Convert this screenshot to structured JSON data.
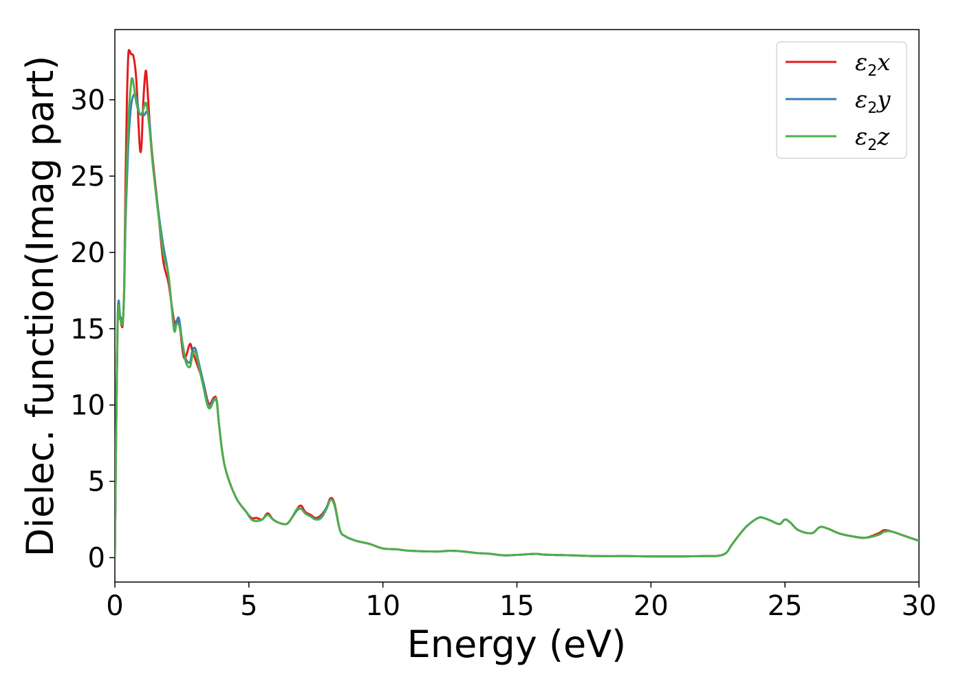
{
  "chart_data": {
    "type": "line",
    "title": "",
    "xlabel": "Energy (eV)",
    "ylabel": "Dielec. function(Imag part)",
    "xlim": [
      0,
      30
    ],
    "ylim": [
      -1.6,
      34.6
    ],
    "xticks": [
      0,
      5,
      10,
      15,
      20,
      25,
      30
    ],
    "yticks": [
      0,
      5,
      10,
      15,
      20,
      25,
      30
    ],
    "grid": false,
    "legend_position": "top-right",
    "series": [
      {
        "name": "ε2x",
        "legend_base": "ε",
        "legend_sub": "2",
        "legend_suffix": "x",
        "color": "#e41a1c",
        "points": [
          [
            0,
            0
          ],
          [
            0.1,
            15
          ],
          [
            0.2,
            15.6
          ],
          [
            0.25,
            15.2
          ],
          [
            0.3,
            15.4
          ],
          [
            0.35,
            18
          ],
          [
            0.4,
            25
          ],
          [
            0.45,
            30
          ],
          [
            0.5,
            32.9
          ],
          [
            0.55,
            33.2
          ],
          [
            0.6,
            33.0
          ],
          [
            0.7,
            32.8
          ],
          [
            0.8,
            31.3
          ],
          [
            0.9,
            27.8
          ],
          [
            0.95,
            26.6
          ],
          [
            1.0,
            27.2
          ],
          [
            1.05,
            29.5
          ],
          [
            1.1,
            31.0
          ],
          [
            1.15,
            31.9
          ],
          [
            1.2,
            31.2
          ],
          [
            1.3,
            28.4
          ],
          [
            1.4,
            26.3
          ],
          [
            1.6,
            23.0
          ],
          [
            1.8,
            19.5
          ],
          [
            2.0,
            18.0
          ],
          [
            2.2,
            15.6
          ],
          [
            2.3,
            15.3
          ],
          [
            2.4,
            15.4
          ],
          [
            2.55,
            13.3
          ],
          [
            2.65,
            13.2
          ],
          [
            2.8,
            14.0
          ],
          [
            2.9,
            13.5
          ],
          [
            3.1,
            12.5
          ],
          [
            3.3,
            11.5
          ],
          [
            3.5,
            10.1
          ],
          [
            3.7,
            10.5
          ],
          [
            3.8,
            10.3
          ],
          [
            3.9,
            8.5
          ],
          [
            4.1,
            6.0
          ],
          [
            4.5,
            4.0
          ],
          [
            4.9,
            3.0
          ],
          [
            5.1,
            2.6
          ],
          [
            5.3,
            2.6
          ],
          [
            5.5,
            2.5
          ],
          [
            5.7,
            2.9
          ],
          [
            5.9,
            2.5
          ],
          [
            6.1,
            2.3
          ],
          [
            6.4,
            2.2
          ],
          [
            6.6,
            2.6
          ],
          [
            6.8,
            3.2
          ],
          [
            6.95,
            3.4
          ],
          [
            7.1,
            3.0
          ],
          [
            7.3,
            2.8
          ],
          [
            7.5,
            2.6
          ],
          [
            7.7,
            2.8
          ],
          [
            7.9,
            3.3
          ],
          [
            8.05,
            3.9
          ],
          [
            8.2,
            3.5
          ],
          [
            8.4,
            1.8
          ],
          [
            8.6,
            1.4
          ],
          [
            9.0,
            1.1
          ],
          [
            9.5,
            0.9
          ],
          [
            10.0,
            0.6
          ],
          [
            10.5,
            0.55
          ],
          [
            11,
            0.45
          ],
          [
            12,
            0.4
          ],
          [
            12.5,
            0.45
          ],
          [
            13,
            0.4
          ],
          [
            13.5,
            0.3
          ],
          [
            14,
            0.25
          ],
          [
            14.5,
            0.15
          ],
          [
            15,
            0.18
          ],
          [
            15.7,
            0.25
          ],
          [
            16,
            0.2
          ],
          [
            17,
            0.15
          ],
          [
            18,
            0.1
          ],
          [
            19,
            0.1
          ],
          [
            20,
            0.08
          ],
          [
            21,
            0.08
          ],
          [
            22,
            0.1
          ],
          [
            22.5,
            0.12
          ],
          [
            22.8,
            0.3
          ],
          [
            23.0,
            0.8
          ],
          [
            23.3,
            1.5
          ],
          [
            23.6,
            2.1
          ],
          [
            24.0,
            2.6
          ],
          [
            24.2,
            2.6
          ],
          [
            24.5,
            2.4
          ],
          [
            24.8,
            2.2
          ],
          [
            25.0,
            2.5
          ],
          [
            25.2,
            2.3
          ],
          [
            25.5,
            1.8
          ],
          [
            26.0,
            1.6
          ],
          [
            26.3,
            2.0
          ],
          [
            26.6,
            1.9
          ],
          [
            27,
            1.6
          ],
          [
            27.5,
            1.4
          ],
          [
            28,
            1.3
          ],
          [
            28.5,
            1.6
          ],
          [
            28.7,
            1.8
          ],
          [
            29,
            1.7
          ],
          [
            29.5,
            1.4
          ],
          [
            30,
            1.1
          ]
        ]
      },
      {
        "name": "ε2y",
        "legend_base": "ε",
        "legend_sub": "2",
        "legend_suffix": "y",
        "color": "#377eb8",
        "points": [
          [
            0,
            0
          ],
          [
            0.1,
            15.5
          ],
          [
            0.2,
            15.8
          ],
          [
            0.25,
            15.5
          ],
          [
            0.3,
            15.6
          ],
          [
            0.35,
            17.5
          ],
          [
            0.4,
            22
          ],
          [
            0.5,
            27
          ],
          [
            0.6,
            29.5
          ],
          [
            0.7,
            30.3
          ],
          [
            0.8,
            30.2
          ],
          [
            0.9,
            29.2
          ],
          [
            1.0,
            29.0
          ],
          [
            1.1,
            29.0
          ],
          [
            1.2,
            29.2
          ],
          [
            1.3,
            28.4
          ],
          [
            1.4,
            26.0
          ],
          [
            1.6,
            23.0
          ],
          [
            1.8,
            20.5
          ],
          [
            2.0,
            18.5
          ],
          [
            2.2,
            15.2
          ],
          [
            2.3,
            15.5
          ],
          [
            2.4,
            15.6
          ],
          [
            2.55,
            13.6
          ],
          [
            2.65,
            13.0
          ],
          [
            2.8,
            12.8
          ],
          [
            2.9,
            13.6
          ],
          [
            3.0,
            13.7
          ],
          [
            3.1,
            13.0
          ],
          [
            3.3,
            11.5
          ],
          [
            3.5,
            9.9
          ],
          [
            3.7,
            10.4
          ],
          [
            3.8,
            10.2
          ],
          [
            3.9,
            8.5
          ],
          [
            4.1,
            6.0
          ],
          [
            4.5,
            4.0
          ],
          [
            4.9,
            3.0
          ],
          [
            5.1,
            2.5
          ],
          [
            5.3,
            2.4
          ],
          [
            5.5,
            2.5
          ],
          [
            5.7,
            2.8
          ],
          [
            5.9,
            2.5
          ],
          [
            6.1,
            2.3
          ],
          [
            6.4,
            2.2
          ],
          [
            6.6,
            2.6
          ],
          [
            6.8,
            3.1
          ],
          [
            6.95,
            3.2
          ],
          [
            7.1,
            2.9
          ],
          [
            7.3,
            2.7
          ],
          [
            7.5,
            2.5
          ],
          [
            7.7,
            2.7
          ],
          [
            7.9,
            3.3
          ],
          [
            8.05,
            3.8
          ],
          [
            8.2,
            3.4
          ],
          [
            8.4,
            1.8
          ],
          [
            8.6,
            1.4
          ],
          [
            9.0,
            1.1
          ],
          [
            9.5,
            0.9
          ],
          [
            10.0,
            0.6
          ],
          [
            10.5,
            0.55
          ],
          [
            11,
            0.45
          ],
          [
            12,
            0.4
          ],
          [
            12.5,
            0.45
          ],
          [
            13,
            0.4
          ],
          [
            13.5,
            0.3
          ],
          [
            14,
            0.25
          ],
          [
            14.5,
            0.15
          ],
          [
            15,
            0.18
          ],
          [
            15.7,
            0.25
          ],
          [
            16,
            0.2
          ],
          [
            17,
            0.15
          ],
          [
            18,
            0.1
          ],
          [
            19,
            0.1
          ],
          [
            20,
            0.08
          ],
          [
            21,
            0.08
          ],
          [
            22,
            0.1
          ],
          [
            22.5,
            0.12
          ],
          [
            22.8,
            0.3
          ],
          [
            23.0,
            0.8
          ],
          [
            23.3,
            1.5
          ],
          [
            23.6,
            2.1
          ],
          [
            24.0,
            2.6
          ],
          [
            24.2,
            2.6
          ],
          [
            24.5,
            2.4
          ],
          [
            24.8,
            2.2
          ],
          [
            25.0,
            2.5
          ],
          [
            25.2,
            2.3
          ],
          [
            25.5,
            1.8
          ],
          [
            26.0,
            1.6
          ],
          [
            26.3,
            2.0
          ],
          [
            26.6,
            1.9
          ],
          [
            27,
            1.6
          ],
          [
            27.5,
            1.4
          ],
          [
            28,
            1.3
          ],
          [
            28.5,
            1.5
          ],
          [
            28.7,
            1.7
          ],
          [
            29,
            1.7
          ],
          [
            29.5,
            1.4
          ],
          [
            30,
            1.1
          ]
        ]
      },
      {
        "name": "ε2z",
        "legend_base": "ε",
        "legend_sub": "2",
        "legend_suffix": "z",
        "color": "#4daf4a",
        "points": [
          [
            0,
            0
          ],
          [
            0.1,
            15.2
          ],
          [
            0.2,
            15.6
          ],
          [
            0.25,
            15.3
          ],
          [
            0.3,
            15.5
          ],
          [
            0.35,
            17.8
          ],
          [
            0.4,
            23
          ],
          [
            0.5,
            28.5
          ],
          [
            0.6,
            31.0
          ],
          [
            0.65,
            31.4
          ],
          [
            0.7,
            31.0
          ],
          [
            0.8,
            29.8
          ],
          [
            0.9,
            29.2
          ],
          [
            1.0,
            29.1
          ],
          [
            1.1,
            29.6
          ],
          [
            1.15,
            29.8
          ],
          [
            1.2,
            29.5
          ],
          [
            1.3,
            28.0
          ],
          [
            1.4,
            26.0
          ],
          [
            1.6,
            22.8
          ],
          [
            1.8,
            20.0
          ],
          [
            2.0,
            18.5
          ],
          [
            2.2,
            15.0
          ],
          [
            2.3,
            15.3
          ],
          [
            2.4,
            15.2
          ],
          [
            2.55,
            13.8
          ],
          [
            2.65,
            12.8
          ],
          [
            2.8,
            12.5
          ],
          [
            2.9,
            13.3
          ],
          [
            3.0,
            13.5
          ],
          [
            3.1,
            12.8
          ],
          [
            3.3,
            11.2
          ],
          [
            3.5,
            9.8
          ],
          [
            3.7,
            10.3
          ],
          [
            3.8,
            10.3
          ],
          [
            3.9,
            8.5
          ],
          [
            4.1,
            6.0
          ],
          [
            4.5,
            4.0
          ],
          [
            4.9,
            3.0
          ],
          [
            5.1,
            2.5
          ],
          [
            5.3,
            2.4
          ],
          [
            5.5,
            2.5
          ],
          [
            5.7,
            2.8
          ],
          [
            5.9,
            2.5
          ],
          [
            6.1,
            2.3
          ],
          [
            6.4,
            2.2
          ],
          [
            6.6,
            2.6
          ],
          [
            6.8,
            3.2
          ],
          [
            6.95,
            3.2
          ],
          [
            7.1,
            2.9
          ],
          [
            7.3,
            2.7
          ],
          [
            7.5,
            2.5
          ],
          [
            7.7,
            2.6
          ],
          [
            7.9,
            3.2
          ],
          [
            8.05,
            3.8
          ],
          [
            8.2,
            3.4
          ],
          [
            8.4,
            1.8
          ],
          [
            8.6,
            1.4
          ],
          [
            9.0,
            1.1
          ],
          [
            9.5,
            0.9
          ],
          [
            10.0,
            0.6
          ],
          [
            10.5,
            0.55
          ],
          [
            11,
            0.45
          ],
          [
            12,
            0.4
          ],
          [
            12.5,
            0.45
          ],
          [
            13,
            0.4
          ],
          [
            13.5,
            0.3
          ],
          [
            14,
            0.25
          ],
          [
            14.5,
            0.15
          ],
          [
            15,
            0.18
          ],
          [
            15.7,
            0.25
          ],
          [
            16,
            0.2
          ],
          [
            17,
            0.15
          ],
          [
            18,
            0.1
          ],
          [
            19,
            0.1
          ],
          [
            20,
            0.08
          ],
          [
            21,
            0.08
          ],
          [
            22,
            0.1
          ],
          [
            22.5,
            0.12
          ],
          [
            22.8,
            0.3
          ],
          [
            23.0,
            0.8
          ],
          [
            23.3,
            1.5
          ],
          [
            23.6,
            2.1
          ],
          [
            24.0,
            2.6
          ],
          [
            24.2,
            2.6
          ],
          [
            24.5,
            2.4
          ],
          [
            24.8,
            2.2
          ],
          [
            25.0,
            2.5
          ],
          [
            25.2,
            2.3
          ],
          [
            25.5,
            1.8
          ],
          [
            26.0,
            1.6
          ],
          [
            26.3,
            2.0
          ],
          [
            26.6,
            1.9
          ],
          [
            27,
            1.6
          ],
          [
            27.5,
            1.4
          ],
          [
            28,
            1.3
          ],
          [
            28.5,
            1.5
          ],
          [
            28.7,
            1.7
          ],
          [
            29,
            1.7
          ],
          [
            29.5,
            1.4
          ],
          [
            30,
            1.1
          ]
        ]
      }
    ]
  }
}
